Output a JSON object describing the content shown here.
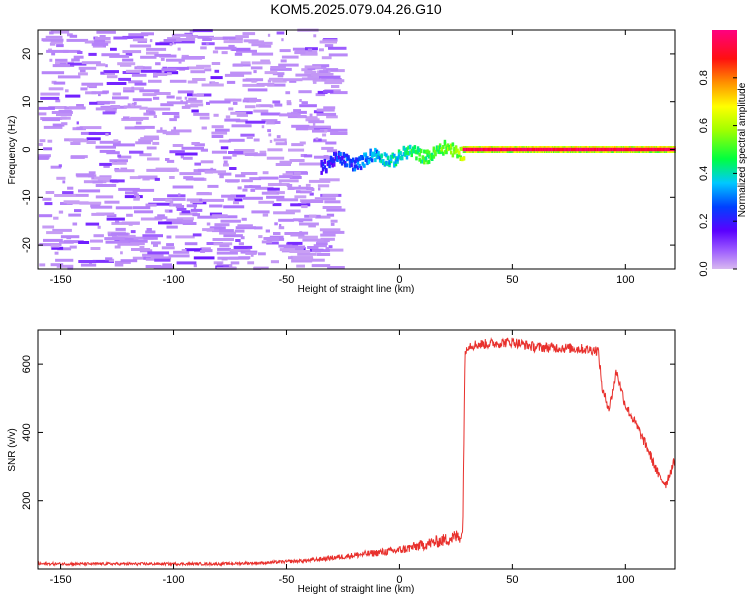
{
  "title": "KOM5.2025.079.04.26.G10",
  "chart_data": [
    {
      "type": "heatmap",
      "xlabel": "Height of straight line (km)",
      "ylabel": "Frequency (Hz)",
      "xlim": [
        -160,
        122
      ],
      "ylim": [
        -25,
        25
      ],
      "xticks": [
        -150,
        -100,
        -50,
        0,
        50,
        100
      ],
      "yticks": [
        -20,
        -10,
        0,
        10,
        20
      ],
      "colorbar": {
        "label": "Normalized spectral amplitude",
        "range": [
          0,
          1
        ],
        "ticks": [
          0.0,
          0.2,
          0.4,
          0.6,
          0.8
        ],
        "colormap": "rainbow (lavender-purple-blue-cyan-green-yellow-orange-red-pink)"
      },
      "features": [
        {
          "description": "sparse low-amplitude noise over full frequency range",
          "x_range": [
            -160,
            -30
          ],
          "amplitude_max": 0.1
        },
        {
          "description": "emerging signal near 0 Hz drifting from -3 Hz to 0 Hz",
          "x_range": [
            -35,
            28
          ],
          "amplitude_max": 0.6
        },
        {
          "description": "strong constant signal at 0 Hz",
          "x_range": [
            28,
            122
          ],
          "frequency": 0,
          "amplitude_max": 1.0
        }
      ]
    },
    {
      "type": "line",
      "xlabel": "Height of straight line (km)",
      "ylabel": "SNR (v/v)",
      "xlim": [
        -160,
        122
      ],
      "ylim": [
        0,
        700
      ],
      "xticks": [
        -150,
        -100,
        -50,
        0,
        50,
        100
      ],
      "yticks": [
        200,
        400,
        600
      ],
      "color": "#e8302c",
      "series": [
        {
          "x": [
            -160,
            -120,
            -80,
            -60,
            -40,
            -20,
            0,
            10,
            20,
            28,
            29,
            30,
            40,
            50,
            60,
            70,
            80,
            88,
            90,
            93,
            96,
            100,
            105,
            110,
            115,
            118,
            122
          ],
          "values": [
            15,
            15,
            15,
            18,
            25,
            40,
            55,
            70,
            85,
            100,
            620,
            655,
            660,
            665,
            650,
            648,
            645,
            640,
            520,
            470,
            580,
            480,
            420,
            350,
            270,
            250,
            320
          ]
        }
      ]
    }
  ]
}
